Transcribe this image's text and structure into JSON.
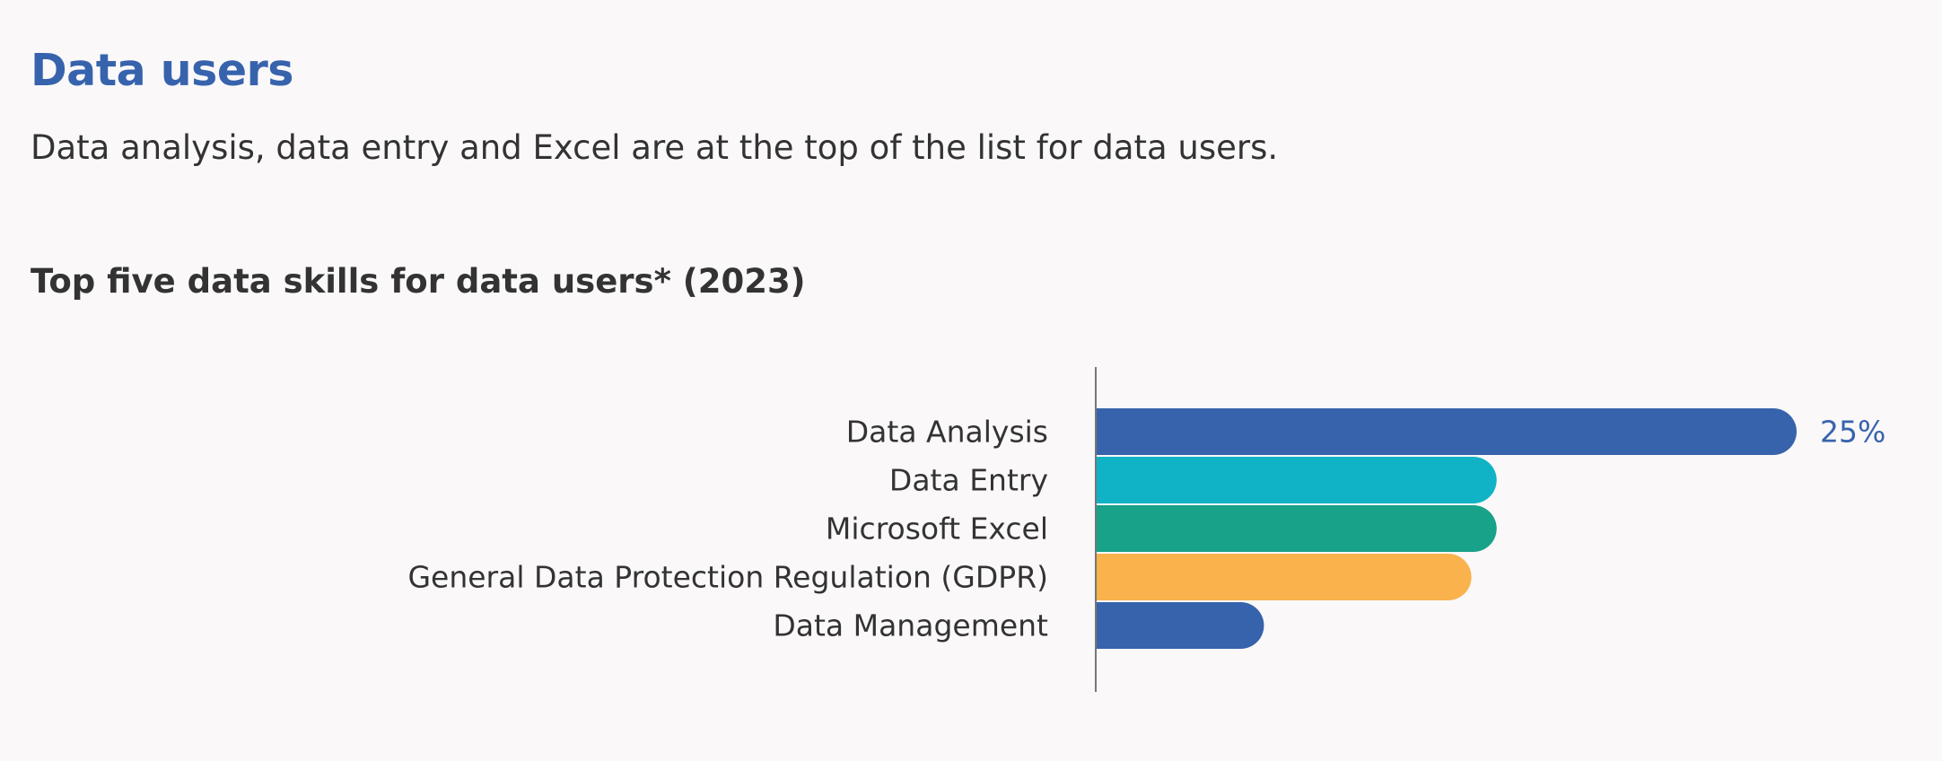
{
  "page": {
    "heading": "Data users",
    "description": "Data analysis, data entry and Excel are at the top of the list for data users."
  },
  "chart_data": {
    "type": "bar",
    "orientation": "horizontal",
    "title": "Top five data skills for data users* (2023)",
    "categories": [
      "Data Analysis",
      "Data Entry",
      "Microsoft Excel",
      "General Data Protection Regulation (GDPR)",
      "Data Management"
    ],
    "values": [
      25,
      14.3,
      14.3,
      13.4,
      6
    ],
    "value_labels": [
      "25%",
      "",
      "",
      "",
      ""
    ],
    "colors": [
      "#3763ad",
      "#0fb3c5",
      "#17a289",
      "#f9b24c",
      "#3763ad"
    ],
    "xlim": [
      0,
      25
    ],
    "grid": false
  }
}
